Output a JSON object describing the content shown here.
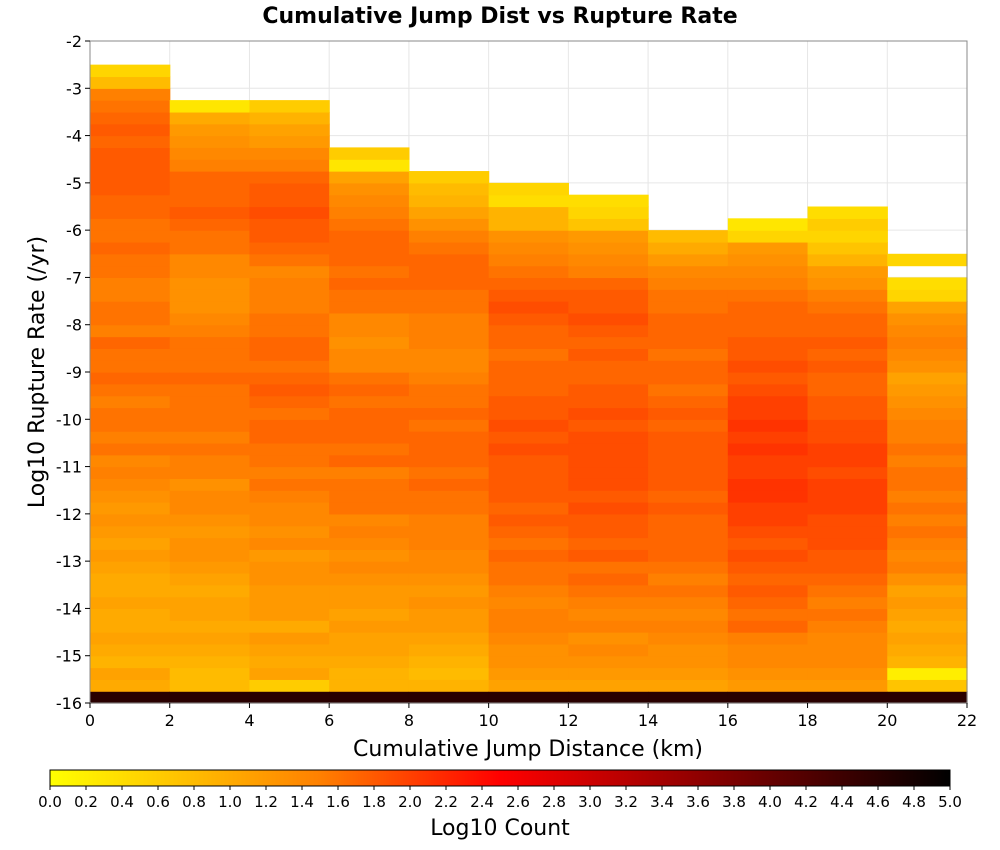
{
  "chart_data": {
    "type": "heatmap",
    "title": "Cumulative Jump Dist vs Rupture Rate",
    "xlabel": "Cumulative Jump Distance (km)",
    "ylabel": "Log10 Rupture Rate (/yr)",
    "xlim": [
      0,
      22
    ],
    "ylim": [
      -16,
      -2
    ],
    "x_ticks": [
      0,
      2,
      4,
      6,
      8,
      10,
      12,
      14,
      16,
      18,
      20,
      22
    ],
    "y_ticks": [
      -2,
      -3,
      -4,
      -5,
      -6,
      -7,
      -8,
      -9,
      -10,
      -11,
      -12,
      -13,
      -14,
      -15,
      -16
    ],
    "x_bin_width": 2,
    "y_bin_height": 0.25,
    "y_bin_start": -16.0,
    "colorbar": {
      "label": "Log10 Count",
      "range": [
        0.0,
        5.0
      ],
      "ticks": [
        "0.0",
        "0.2",
        "0.4",
        "0.6",
        "0.8",
        "1.0",
        "1.2",
        "1.4",
        "1.6",
        "1.8",
        "2.0",
        "2.2",
        "2.4",
        "2.6",
        "2.8",
        "3.0",
        "3.2",
        "3.4",
        "3.6",
        "3.8",
        "4.0",
        "4.2",
        "4.4",
        "4.6",
        "4.8",
        "5.0"
      ],
      "colors": [
        "#ffff00",
        "#ff8000",
        "#ff0000",
        "#800000",
        "#000000"
      ],
      "stops": [
        0,
        0.3,
        0.5,
        0.75,
        1
      ]
    },
    "columns": [
      {
        "x": 0,
        "values": [
          4.6,
          1.0,
          1.1,
          0.9,
          1.0,
          1.1,
          1.0,
          1.0,
          1.1,
          1.0,
          1.0,
          1.1,
          1.2,
          1.1,
          1.2,
          1.3,
          1.2,
          1.3,
          1.4,
          1.5,
          1.4,
          1.6,
          1.5,
          1.6,
          1.6,
          1.5,
          1.6,
          1.7,
          1.6,
          1.6,
          1.7,
          1.5,
          1.6,
          1.6,
          1.5,
          1.5,
          1.6,
          1.6,
          1.7,
          1.6,
          1.6,
          1.7,
          1.7,
          1.8,
          1.8,
          1.8,
          1.8,
          1.7,
          1.8,
          1.7,
          1.6,
          1.5,
          0.8,
          0.5
        ]
      },
      {
        "x": 2,
        "values": [
          4.6,
          0.8,
          0.8,
          0.9,
          1.0,
          1.1,
          1.0,
          1.1,
          1.1,
          1.0,
          1.1,
          1.2,
          1.3,
          1.3,
          1.2,
          1.3,
          1.4,
          1.4,
          1.3,
          1.5,
          1.5,
          1.6,
          1.5,
          1.6,
          1.6,
          1.6,
          1.6,
          1.7,
          1.6,
          1.6,
          1.6,
          1.5,
          1.4,
          1.3,
          1.3,
          1.3,
          1.4,
          1.4,
          1.6,
          1.6,
          1.7,
          1.8,
          1.7,
          1.7,
          1.7,
          1.5,
          1.4,
          1.3,
          1.2,
          1.0,
          0.3
        ]
      },
      {
        "x": 4,
        "values": [
          4.6,
          0.6,
          1.1,
          1.0,
          1.1,
          1.2,
          1.0,
          1.2,
          1.2,
          1.2,
          1.3,
          1.3,
          1.2,
          1.4,
          1.3,
          1.4,
          1.4,
          1.5,
          1.6,
          1.5,
          1.6,
          1.6,
          1.7,
          1.7,
          1.6,
          1.7,
          1.8,
          1.7,
          1.6,
          1.7,
          1.7,
          1.6,
          1.6,
          1.5,
          1.5,
          1.5,
          1.4,
          1.6,
          1.7,
          1.8,
          1.8,
          1.9,
          1.8,
          1.8,
          1.7,
          1.5,
          1.4,
          1.2,
          1.1,
          0.9,
          0.6
        ]
      },
      {
        "x": 6,
        "values": [
          4.6,
          0.9,
          0.9,
          1.0,
          1.1,
          1.1,
          1.2,
          1.1,
          1.2,
          1.2,
          1.3,
          1.4,
          1.3,
          1.4,
          1.5,
          1.4,
          1.6,
          1.6,
          1.6,
          1.5,
          1.7,
          1.6,
          1.7,
          1.7,
          1.7,
          1.6,
          1.7,
          1.6,
          1.4,
          1.4,
          1.3,
          1.4,
          1.4,
          1.6,
          1.6,
          1.7,
          1.6,
          1.7,
          1.7,
          1.7,
          1.6,
          1.5,
          1.4,
          1.3,
          1.1,
          0.3,
          0.6
        ]
      },
      {
        "x": 8,
        "values": [
          4.6,
          0.9,
          0.8,
          0.9,
          1.0,
          1.1,
          1.2,
          1.2,
          1.3,
          1.2,
          1.3,
          1.4,
          1.4,
          1.5,
          1.5,
          1.5,
          1.6,
          1.6,
          1.7,
          1.6,
          1.7,
          1.7,
          1.7,
          1.6,
          1.7,
          1.6,
          1.6,
          1.5,
          1.4,
          1.4,
          1.5,
          1.5,
          1.5,
          1.6,
          1.6,
          1.7,
          1.7,
          1.7,
          1.6,
          1.5,
          1.3,
          1.1,
          0.9,
          0.8,
          0.6
        ]
      },
      {
        "x": 10,
        "values": [
          4.6,
          1.1,
          1.2,
          1.3,
          1.3,
          1.4,
          1.5,
          1.5,
          1.4,
          1.5,
          1.6,
          1.6,
          1.7,
          1.6,
          1.7,
          1.8,
          1.7,
          1.8,
          1.8,
          1.8,
          1.8,
          1.9,
          1.8,
          1.9,
          1.8,
          1.8,
          1.7,
          1.7,
          1.7,
          1.6,
          1.7,
          1.7,
          1.8,
          1.9,
          1.8,
          1.7,
          1.6,
          1.5,
          1.4,
          1.3,
          0.9,
          0.9,
          0.4,
          0.5
        ]
      },
      {
        "x": 12,
        "values": [
          4.6,
          1.1,
          1.2,
          1.3,
          1.4,
          1.3,
          1.5,
          1.4,
          1.5,
          1.6,
          1.7,
          1.6,
          1.8,
          1.7,
          1.8,
          1.8,
          1.9,
          1.8,
          1.9,
          1.9,
          1.9,
          1.9,
          1.9,
          1.8,
          1.9,
          1.8,
          1.8,
          1.7,
          1.7,
          1.8,
          1.7,
          1.8,
          1.9,
          1.8,
          1.8,
          1.7,
          1.5,
          1.4,
          1.3,
          1.2,
          0.7,
          0.5,
          0.4
        ]
      },
      {
        "x": 14,
        "values": [
          4.6,
          1.1,
          1.2,
          1.3,
          1.3,
          1.4,
          1.5,
          1.4,
          1.5,
          1.6,
          1.5,
          1.6,
          1.7,
          1.7,
          1.7,
          1.7,
          1.8,
          1.7,
          1.8,
          1.8,
          1.8,
          1.8,
          1.8,
          1.7,
          1.8,
          1.7,
          1.6,
          1.7,
          1.7,
          1.6,
          1.7,
          1.7,
          1.7,
          1.6,
          1.6,
          1.5,
          1.4,
          1.2,
          1.0,
          0.8
        ]
      },
      {
        "x": 16,
        "values": [
          4.6,
          1.2,
          1.3,
          1.4,
          1.4,
          1.5,
          1.7,
          1.6,
          1.7,
          1.8,
          1.7,
          1.8,
          1.9,
          1.8,
          1.9,
          2.0,
          2.0,
          2.1,
          2.1,
          2.0,
          2.0,
          2.1,
          2.0,
          2.1,
          2.0,
          2.0,
          1.9,
          1.8,
          1.9,
          1.8,
          1.8,
          1.7,
          1.7,
          1.7,
          1.6,
          1.5,
          1.4,
          1.3,
          1.2,
          0.5,
          0.3
        ]
      },
      {
        "x": 18,
        "values": [
          4.6,
          1.2,
          1.3,
          1.4,
          1.4,
          1.4,
          1.5,
          1.6,
          1.5,
          1.6,
          1.7,
          1.8,
          1.8,
          1.9,
          1.9,
          1.9,
          2.0,
          2.0,
          2.0,
          1.9,
          2.0,
          2.0,
          1.9,
          1.9,
          1.8,
          1.8,
          1.7,
          1.7,
          1.8,
          1.7,
          1.8,
          1.7,
          1.7,
          1.6,
          1.5,
          1.3,
          1.2,
          0.9,
          0.7,
          0.5,
          0.6,
          0.4
        ]
      },
      {
        "x": 20,
        "values": [
          4.6,
          0.7,
          0.2,
          0.9,
          1.0,
          1.1,
          1.0,
          1.1,
          1.2,
          1.1,
          1.3,
          1.5,
          1.4,
          1.5,
          1.6,
          1.5,
          1.6,
          1.5,
          1.6,
          1.6,
          1.5,
          1.6,
          1.5,
          1.5,
          1.4,
          1.3,
          1.2,
          1.1,
          1.3,
          1.4,
          1.5,
          1.4,
          1.3,
          1.1,
          0.5,
          0.4,
          null,
          0.5
        ]
      }
    ]
  }
}
